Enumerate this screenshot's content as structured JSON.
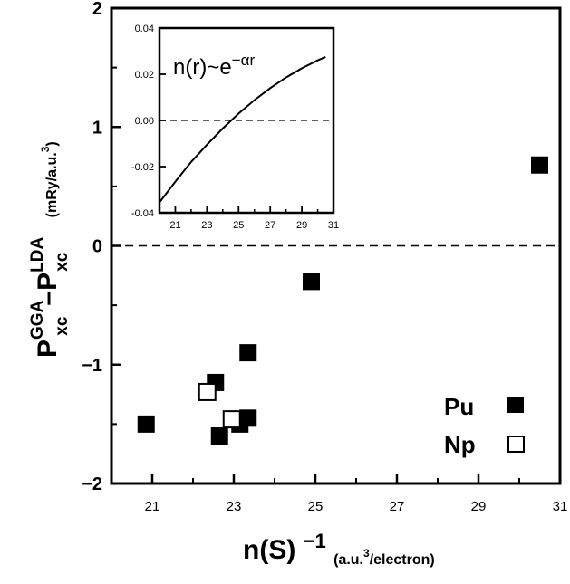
{
  "chart_data": [
    {
      "type": "scatter",
      "title": "",
      "xlabel": {
        "main": "n(S)",
        "exp": "−1",
        "unit_pre": "(a.u.",
        "unit_exp": "3",
        "unit_post": "/electron)"
      },
      "ylabel": {
        "p": "P",
        "sup1": "GGA",
        "sub1": "xc",
        "dash": "–",
        "sup2": "LDA",
        "sub2": "xc",
        "unit_pre": "(mRy/a.u.",
        "unit_exp": "3",
        "unit_post": ")"
      },
      "xlim": [
        20,
        31
      ],
      "ylim": [
        -2,
        2
      ],
      "x_ticks": [
        "21",
        "23",
        "25",
        "27",
        "29",
        "31"
      ],
      "y_ticks": [
        "2",
        "1",
        "0",
        "−1",
        "−2"
      ],
      "zero_line": "dashed",
      "series": [
        {
          "name": "Pu",
          "marker": "filled-square",
          "color": "#000000",
          "points": [
            [
              20.85,
              -1.5
            ],
            [
              22.55,
              -1.15
            ],
            [
              22.65,
              -1.6
            ],
            [
              23.15,
              -1.5
            ],
            [
              23.35,
              -0.9
            ],
            [
              23.35,
              -1.45
            ],
            [
              24.9,
              -0.3
            ],
            [
              30.5,
              0.68
            ]
          ]
        },
        {
          "name": "Np",
          "marker": "open-square",
          "color": "#000000",
          "points": [
            [
              22.35,
              -1.23
            ],
            [
              22.95,
              -1.46
            ]
          ]
        }
      ],
      "legend_position": "bottom-right"
    },
    {
      "type": "line",
      "inset": true,
      "annotation": {
        "lhs": "n(r)~e",
        "exp": "−αr"
      },
      "xlim": [
        20,
        31
      ],
      "ylim": [
        -0.04,
        0.04
      ],
      "x_ticks": [
        "21",
        "23",
        "25",
        "27",
        "29",
        "31"
      ],
      "y_ticks": [
        "0.04",
        "0.02",
        "0.00",
        "-0.02",
        "-0.04"
      ],
      "zero_line": "dashed",
      "series": [
        {
          "x": [
            20,
            21,
            22,
            23,
            24,
            25,
            26,
            27,
            28,
            29,
            30,
            30.5
          ],
          "y": [
            -0.0355,
            -0.0265,
            -0.018,
            -0.0105,
            -0.0035,
            0.003,
            0.0088,
            0.014,
            0.0186,
            0.0226,
            0.026,
            0.0275
          ]
        }
      ]
    }
  ]
}
